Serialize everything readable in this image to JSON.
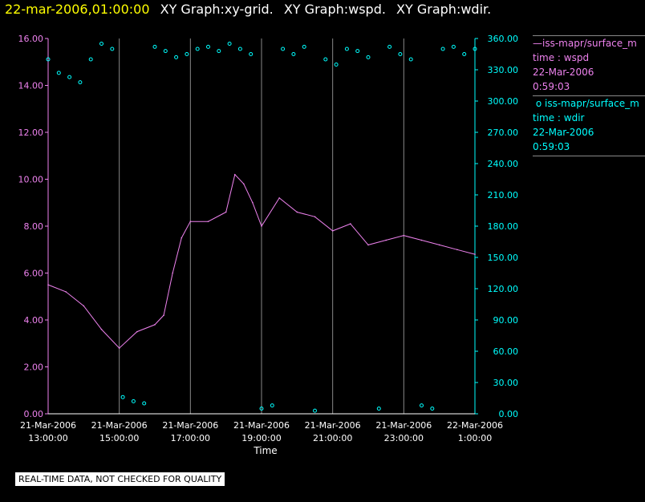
{
  "header": {
    "datetime": "22-mar-2006,01:00:00",
    "graphs": [
      "XY Graph:xy-grid.",
      "XY Graph:wspd.",
      "XY Graph:wdir."
    ]
  },
  "notice": "REAL-TIME DATA, NOT CHECKED FOR QUALITY",
  "legend": {
    "wspd": {
      "series": "iss-mapr/surface_m",
      "label": "time : wspd",
      "date": "22-Mar-2006",
      "time": "0:59:03"
    },
    "wdir": {
      "series": "iss-mapr/surface_m",
      "label": "time : wdir",
      "date": "22-Mar-2006",
      "time": "0:59:03"
    }
  },
  "colors": {
    "wspd": "#ee82ee",
    "wdir": "#00ffff",
    "grid": "#888888",
    "date": "#ffff00"
  },
  "chart_data": {
    "type": "line",
    "xlabel": "Time",
    "x_tick_labels": [
      [
        "21-Mar-2006",
        "13:00:00"
      ],
      [
        "21-Mar-2006",
        "15:00:00"
      ],
      [
        "21-Mar-2006",
        "17:00:00"
      ],
      [
        "21-Mar-2006",
        "19:00:00"
      ],
      [
        "21-Mar-2006",
        "21:00:00"
      ],
      [
        "21-Mar-2006",
        "23:00:00"
      ],
      [
        "22-Mar-2006",
        "1:00:00"
      ]
    ],
    "x_range_hours": [
      13,
      25
    ],
    "y_left": {
      "ylim": [
        0,
        16
      ],
      "ticks": [
        "0.00",
        "2.00",
        "4.00",
        "6.00",
        "8.00",
        "10.00",
        "12.00",
        "14.00",
        "16.00"
      ]
    },
    "y_right": {
      "ylim": [
        0,
        360
      ],
      "ticks": [
        "0.00",
        "30.00",
        "60.00",
        "90.00",
        "120.00",
        "150.00",
        "180.00",
        "210.00",
        "240.00",
        "270.00",
        "300.00",
        "330.00",
        "360.00"
      ]
    },
    "grid": "vertical",
    "series": [
      {
        "name": "time : wspd",
        "type": "line",
        "axis": "left",
        "x": [
          13.0,
          13.5,
          14.0,
          14.5,
          15.0,
          15.5,
          16.0,
          16.25,
          16.5,
          16.75,
          17.0,
          17.5,
          18.0,
          18.25,
          18.5,
          18.75,
          19.0,
          19.5,
          20.0,
          20.5,
          21.0,
          21.5,
          22.0,
          22.5,
          23.0,
          23.5,
          24.0,
          24.5,
          25.0
        ],
        "values": [
          5.5,
          5.2,
          4.6,
          3.6,
          2.8,
          3.5,
          3.8,
          4.2,
          6.0,
          7.5,
          8.2,
          8.2,
          8.6,
          10.2,
          9.8,
          9.0,
          8.0,
          9.2,
          8.6,
          8.4,
          7.8,
          8.1,
          7.2,
          7.4,
          7.6,
          7.4,
          7.2,
          7.0,
          6.8
        ]
      },
      {
        "name": "time : wdir",
        "type": "scatter",
        "axis": "right",
        "x": [
          13.0,
          13.3,
          13.6,
          13.9,
          14.2,
          14.5,
          14.8,
          15.1,
          15.4,
          15.7,
          16.0,
          16.3,
          16.6,
          16.9,
          17.2,
          17.5,
          17.8,
          18.1,
          18.4,
          18.7,
          19.0,
          19.3,
          19.6,
          19.9,
          20.2,
          20.5,
          20.8,
          21.1,
          21.4,
          21.7,
          22.0,
          22.3,
          22.6,
          22.9,
          23.2,
          23.5,
          23.8,
          24.1,
          24.4,
          24.7,
          25.0
        ],
        "values": [
          340,
          327,
          323,
          318,
          340,
          355,
          350,
          16,
          12,
          10,
          352,
          348,
          342,
          345,
          350,
          352,
          348,
          355,
          350,
          345,
          5,
          8,
          350,
          345,
          352,
          3,
          340,
          335,
          350,
          348,
          342,
          5,
          352,
          345,
          340,
          8,
          5,
          350,
          352,
          345,
          350
        ]
      }
    ]
  }
}
